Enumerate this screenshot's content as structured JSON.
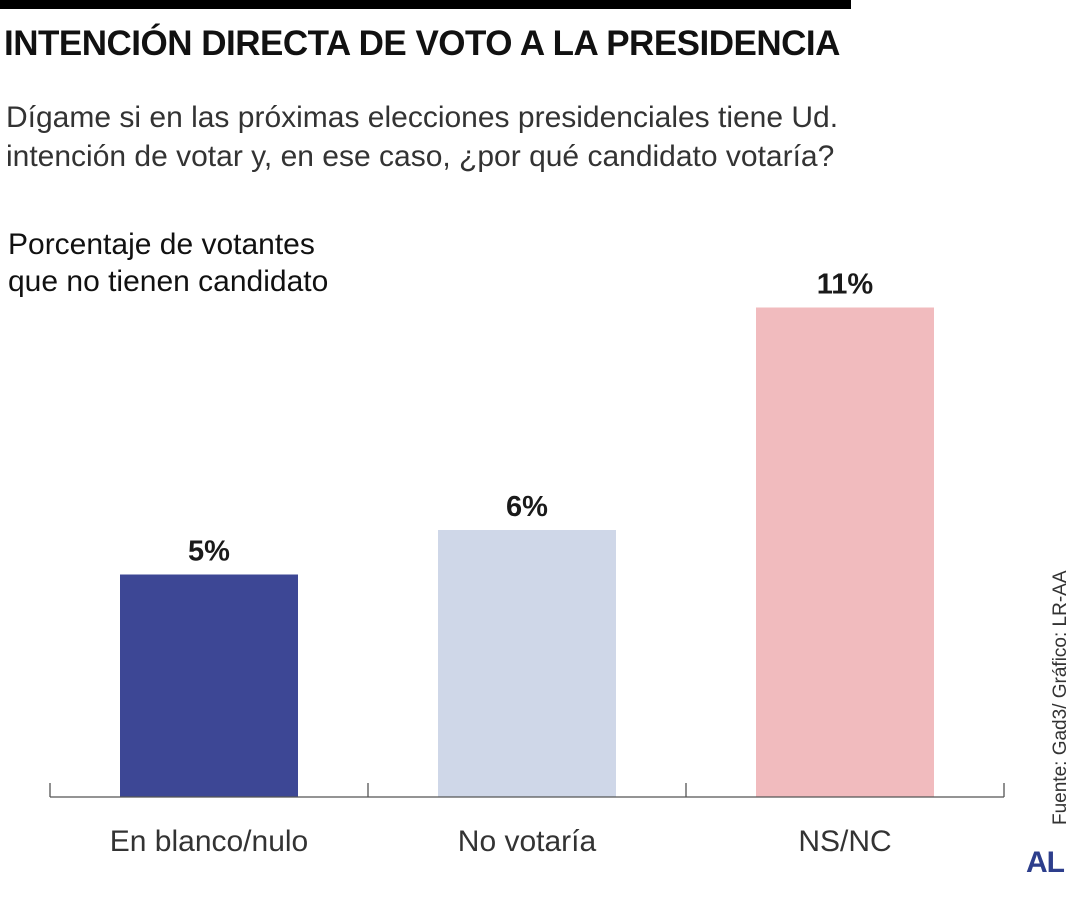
{
  "header": {
    "title": "INTENCIÓN DIRECTA DE VOTO A LA PRESIDENCIA",
    "subtitle_lines": [
      "Dígame si en las próximas elecciones presidenciales tiene Ud.",
      "intención de votar y, en ese caso, ¿por qué candidato votaría?"
    ]
  },
  "chart_data": {
    "type": "bar",
    "title_lines": [
      "Porcentaje de votantes",
      "que no tienen candidato"
    ],
    "categories": [
      "En blanco/nulo",
      "No votaría",
      "NS/NC"
    ],
    "values": [
      5,
      6,
      11
    ],
    "value_labels": [
      "5%",
      "6%",
      "11%"
    ],
    "unit": "%",
    "ylim": [
      0,
      12
    ],
    "grid": false,
    "colors": [
      "#3d4795",
      "#cfd7e8",
      "#f1bbbe"
    ]
  },
  "footer": {
    "source": "Fuente:  Gad3/ Gráfico: LR-AA",
    "logo_text": "AL"
  }
}
